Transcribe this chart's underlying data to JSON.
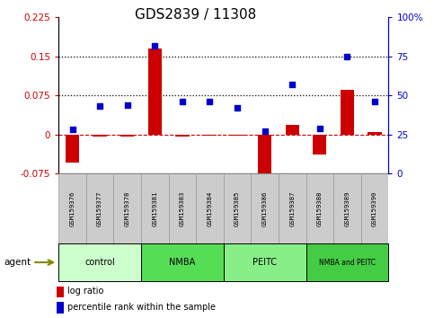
{
  "title": "GDS2839 / 11308",
  "samples": [
    "GSM159376",
    "GSM159377",
    "GSM159378",
    "GSM159381",
    "GSM159383",
    "GSM159384",
    "GSM159385",
    "GSM159386",
    "GSM159387",
    "GSM159388",
    "GSM159389",
    "GSM159390"
  ],
  "log_ratio": [
    -0.055,
    -0.005,
    -0.005,
    0.165,
    -0.005,
    -0.003,
    -0.002,
    -0.09,
    0.018,
    -0.038,
    0.085,
    0.005
  ],
  "percentile_rank": [
    28,
    43,
    44,
    82,
    46,
    46,
    42,
    27,
    57,
    29,
    75,
    46
  ],
  "groups": [
    {
      "label": "control",
      "start": 0,
      "end": 2,
      "color": "#ccffcc"
    },
    {
      "label": "NMBA",
      "start": 3,
      "end": 5,
      "color": "#55dd55"
    },
    {
      "label": "PEITC",
      "start": 6,
      "end": 8,
      "color": "#88ee88"
    },
    {
      "label": "NMBA and PEITC",
      "start": 9,
      "end": 11,
      "color": "#44cc44"
    }
  ],
  "ylim_left": [
    -0.075,
    0.225
  ],
  "ylim_right": [
    0,
    100
  ],
  "yticks_left": [
    -0.075,
    0,
    0.075,
    0.15,
    0.225
  ],
  "yticks_right": [
    0,
    25,
    50,
    75,
    100
  ],
  "hlines": [
    0.075,
    0.15
  ],
  "left_color": "#cc0000",
  "right_color": "#0000cc",
  "bar_color": "#cc0000",
  "dot_color": "#0000cc",
  "tick_fontsize": 7.5,
  "title_fontsize": 11
}
